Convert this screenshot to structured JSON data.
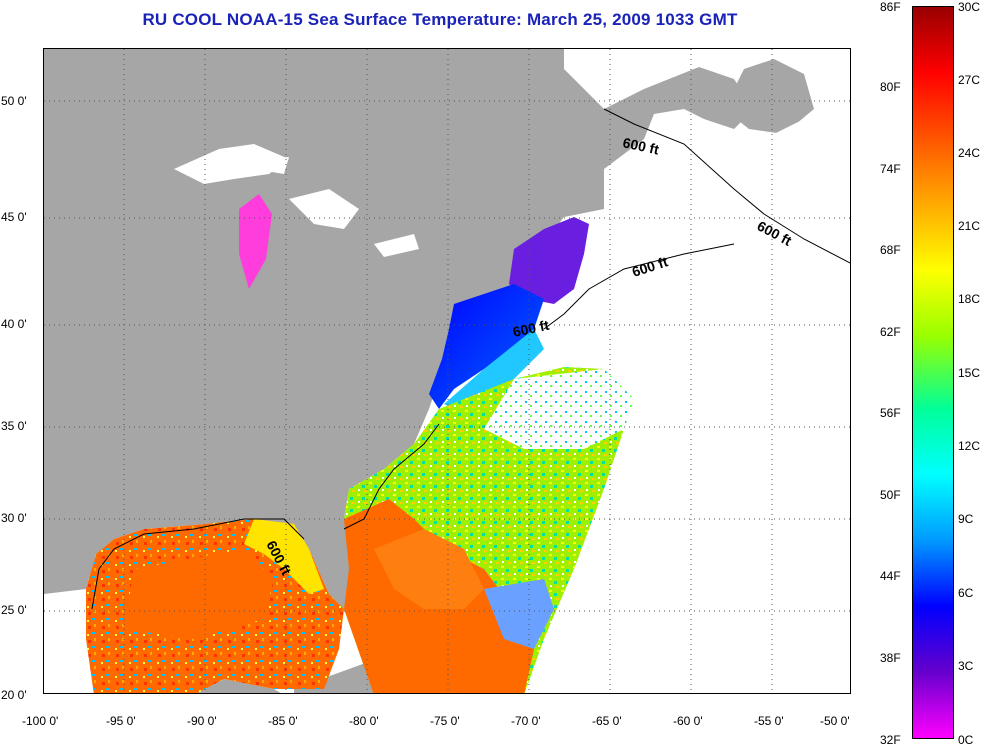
{
  "title": "RU COOL  NOAA-15  Sea Surface Temperature:  March 25, 2009 1033 GMT",
  "x_axis_labels": [
    "-100 0'",
    "-95 0'",
    "-90 0'",
    "-85 0'",
    "-80 0'",
    "-75 0'",
    "-70 0'",
    "-65 0'",
    "-60 0'",
    "-55 0'",
    "-50 0'"
  ],
  "y_axis_labels": [
    "50 0'",
    "45 0'",
    "40 0'",
    "35 0'",
    "30 0'",
    "25 0'",
    "20 0'"
  ],
  "colorbar": {
    "fahrenheit_labels": [
      "86F",
      "80F",
      "74F",
      "68F",
      "62F",
      "56F",
      "50F",
      "44F",
      "38F",
      "32F"
    ],
    "celsius_labels": [
      "30C",
      "27C",
      "24C",
      "21C",
      "18C",
      "15C",
      "12C",
      "9C",
      "6C",
      "3C",
      "0C"
    ],
    "colors": [
      "#ff00ff",
      "#6600cc",
      "#0000ff",
      "#0099ff",
      "#00ffff",
      "#00ff99",
      "#99ff00",
      "#ffff00",
      "#ffaa00",
      "#ff5500",
      "#ff0000",
      "#990000"
    ]
  },
  "contour_labels": [
    "600 ft",
    "600 ft",
    "600 ft",
    "600 ft",
    "600 ft"
  ],
  "colors": {
    "land": "#a6a6a6",
    "no_data": "#ffffff",
    "title": "#1a22b8"
  }
}
